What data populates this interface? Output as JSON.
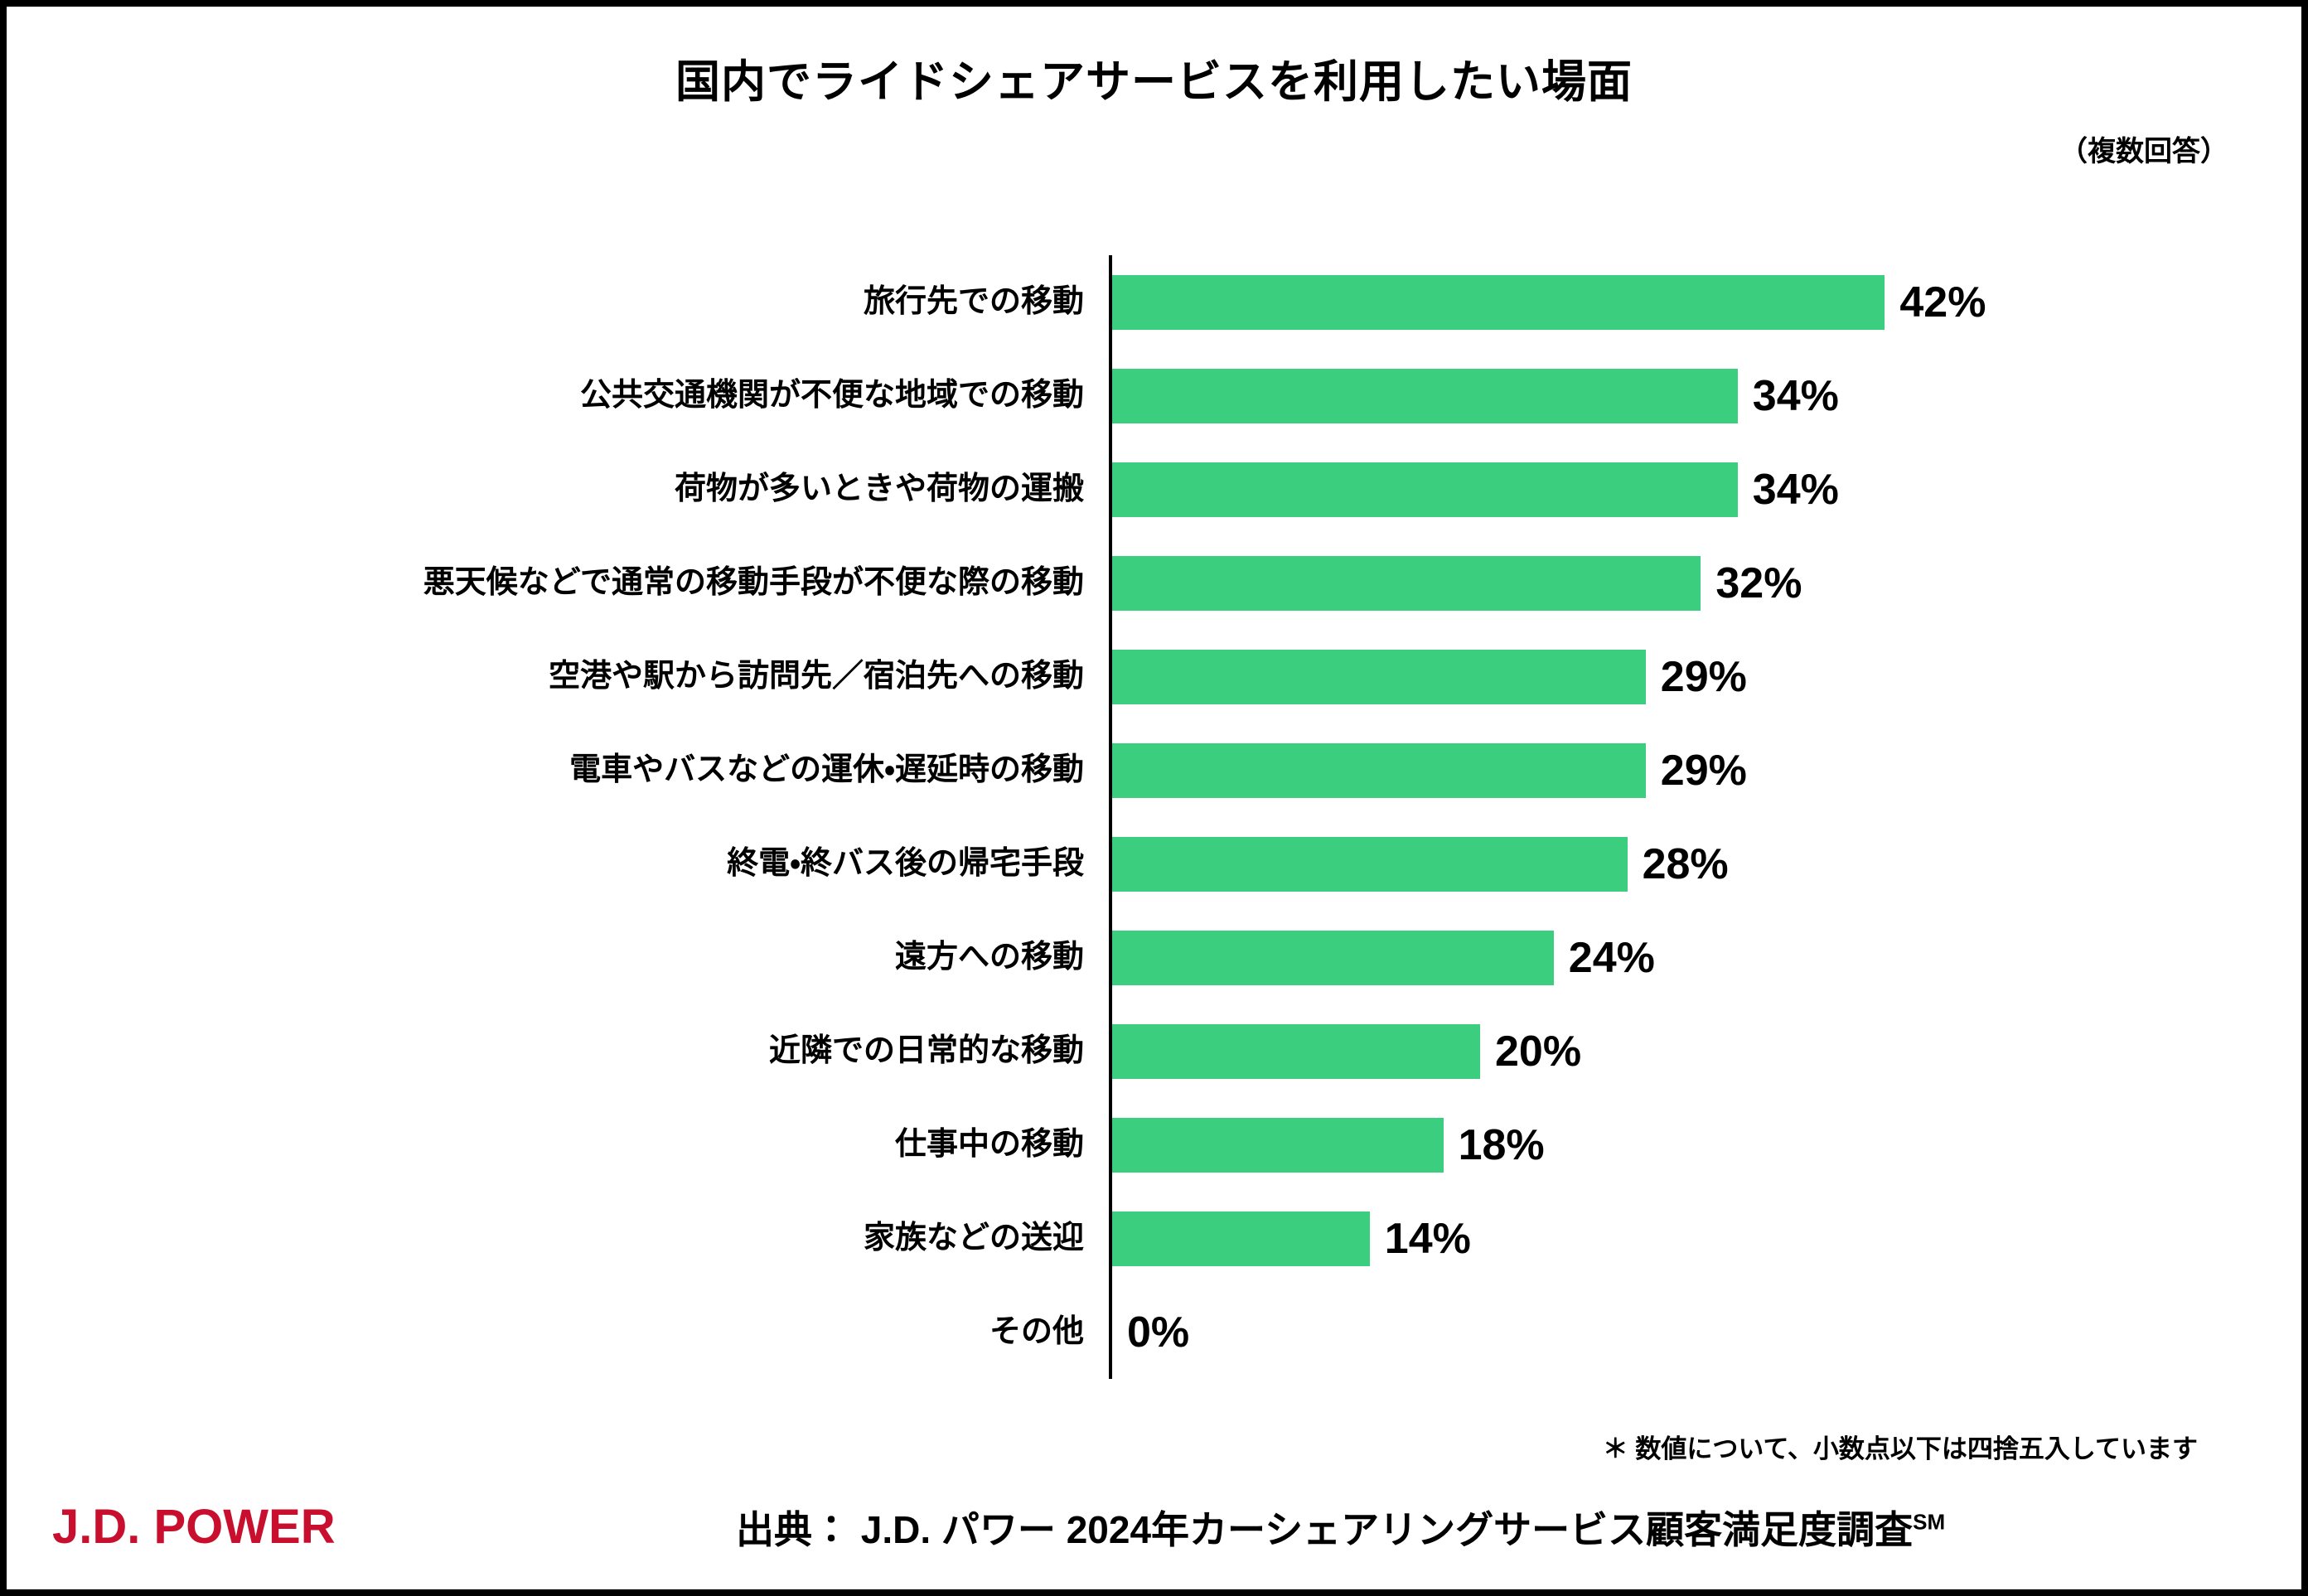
{
  "chart_data": {
    "type": "bar",
    "orientation": "horizontal",
    "title": "国内でライドシェアサービスを利用したい場面",
    "multiple_answer_note": "（複数回答）",
    "categories": [
      "旅行先での移動",
      "公共交通機関が不便な地域での移動",
      "荷物が多いときや荷物の運搬",
      "悪天候などで通常の移動手段が不便な際の移動",
      "空港や駅から訪問先／宿泊先への移動",
      "電車やバスなどの運休・遅延時の移動",
      "終電・終バス後の帰宅手段",
      "遠方への移動",
      "近隣での日常的な移動",
      "仕事中の移動",
      "家族などの送迎",
      "その他"
    ],
    "values": [
      42,
      34,
      34,
      32,
      29,
      29,
      28,
      24,
      20,
      18,
      14,
      0
    ],
    "unit": "%",
    "xlim": [
      0,
      45
    ],
    "bar_color": "#3bce7e",
    "grid": false,
    "legend": "none",
    "value_labels_position": "right-of-bar"
  },
  "footer": {
    "rounding_note": "＊ 数値について、小数点以下は四捨五入しています",
    "source_prefix": "出典： J.D. パワー 2024年カーシェアリングサービス顧客満足度調査",
    "source_superscript": "SM",
    "logo_text": "J.D. POWER",
    "logo_color": "#c8102e"
  }
}
